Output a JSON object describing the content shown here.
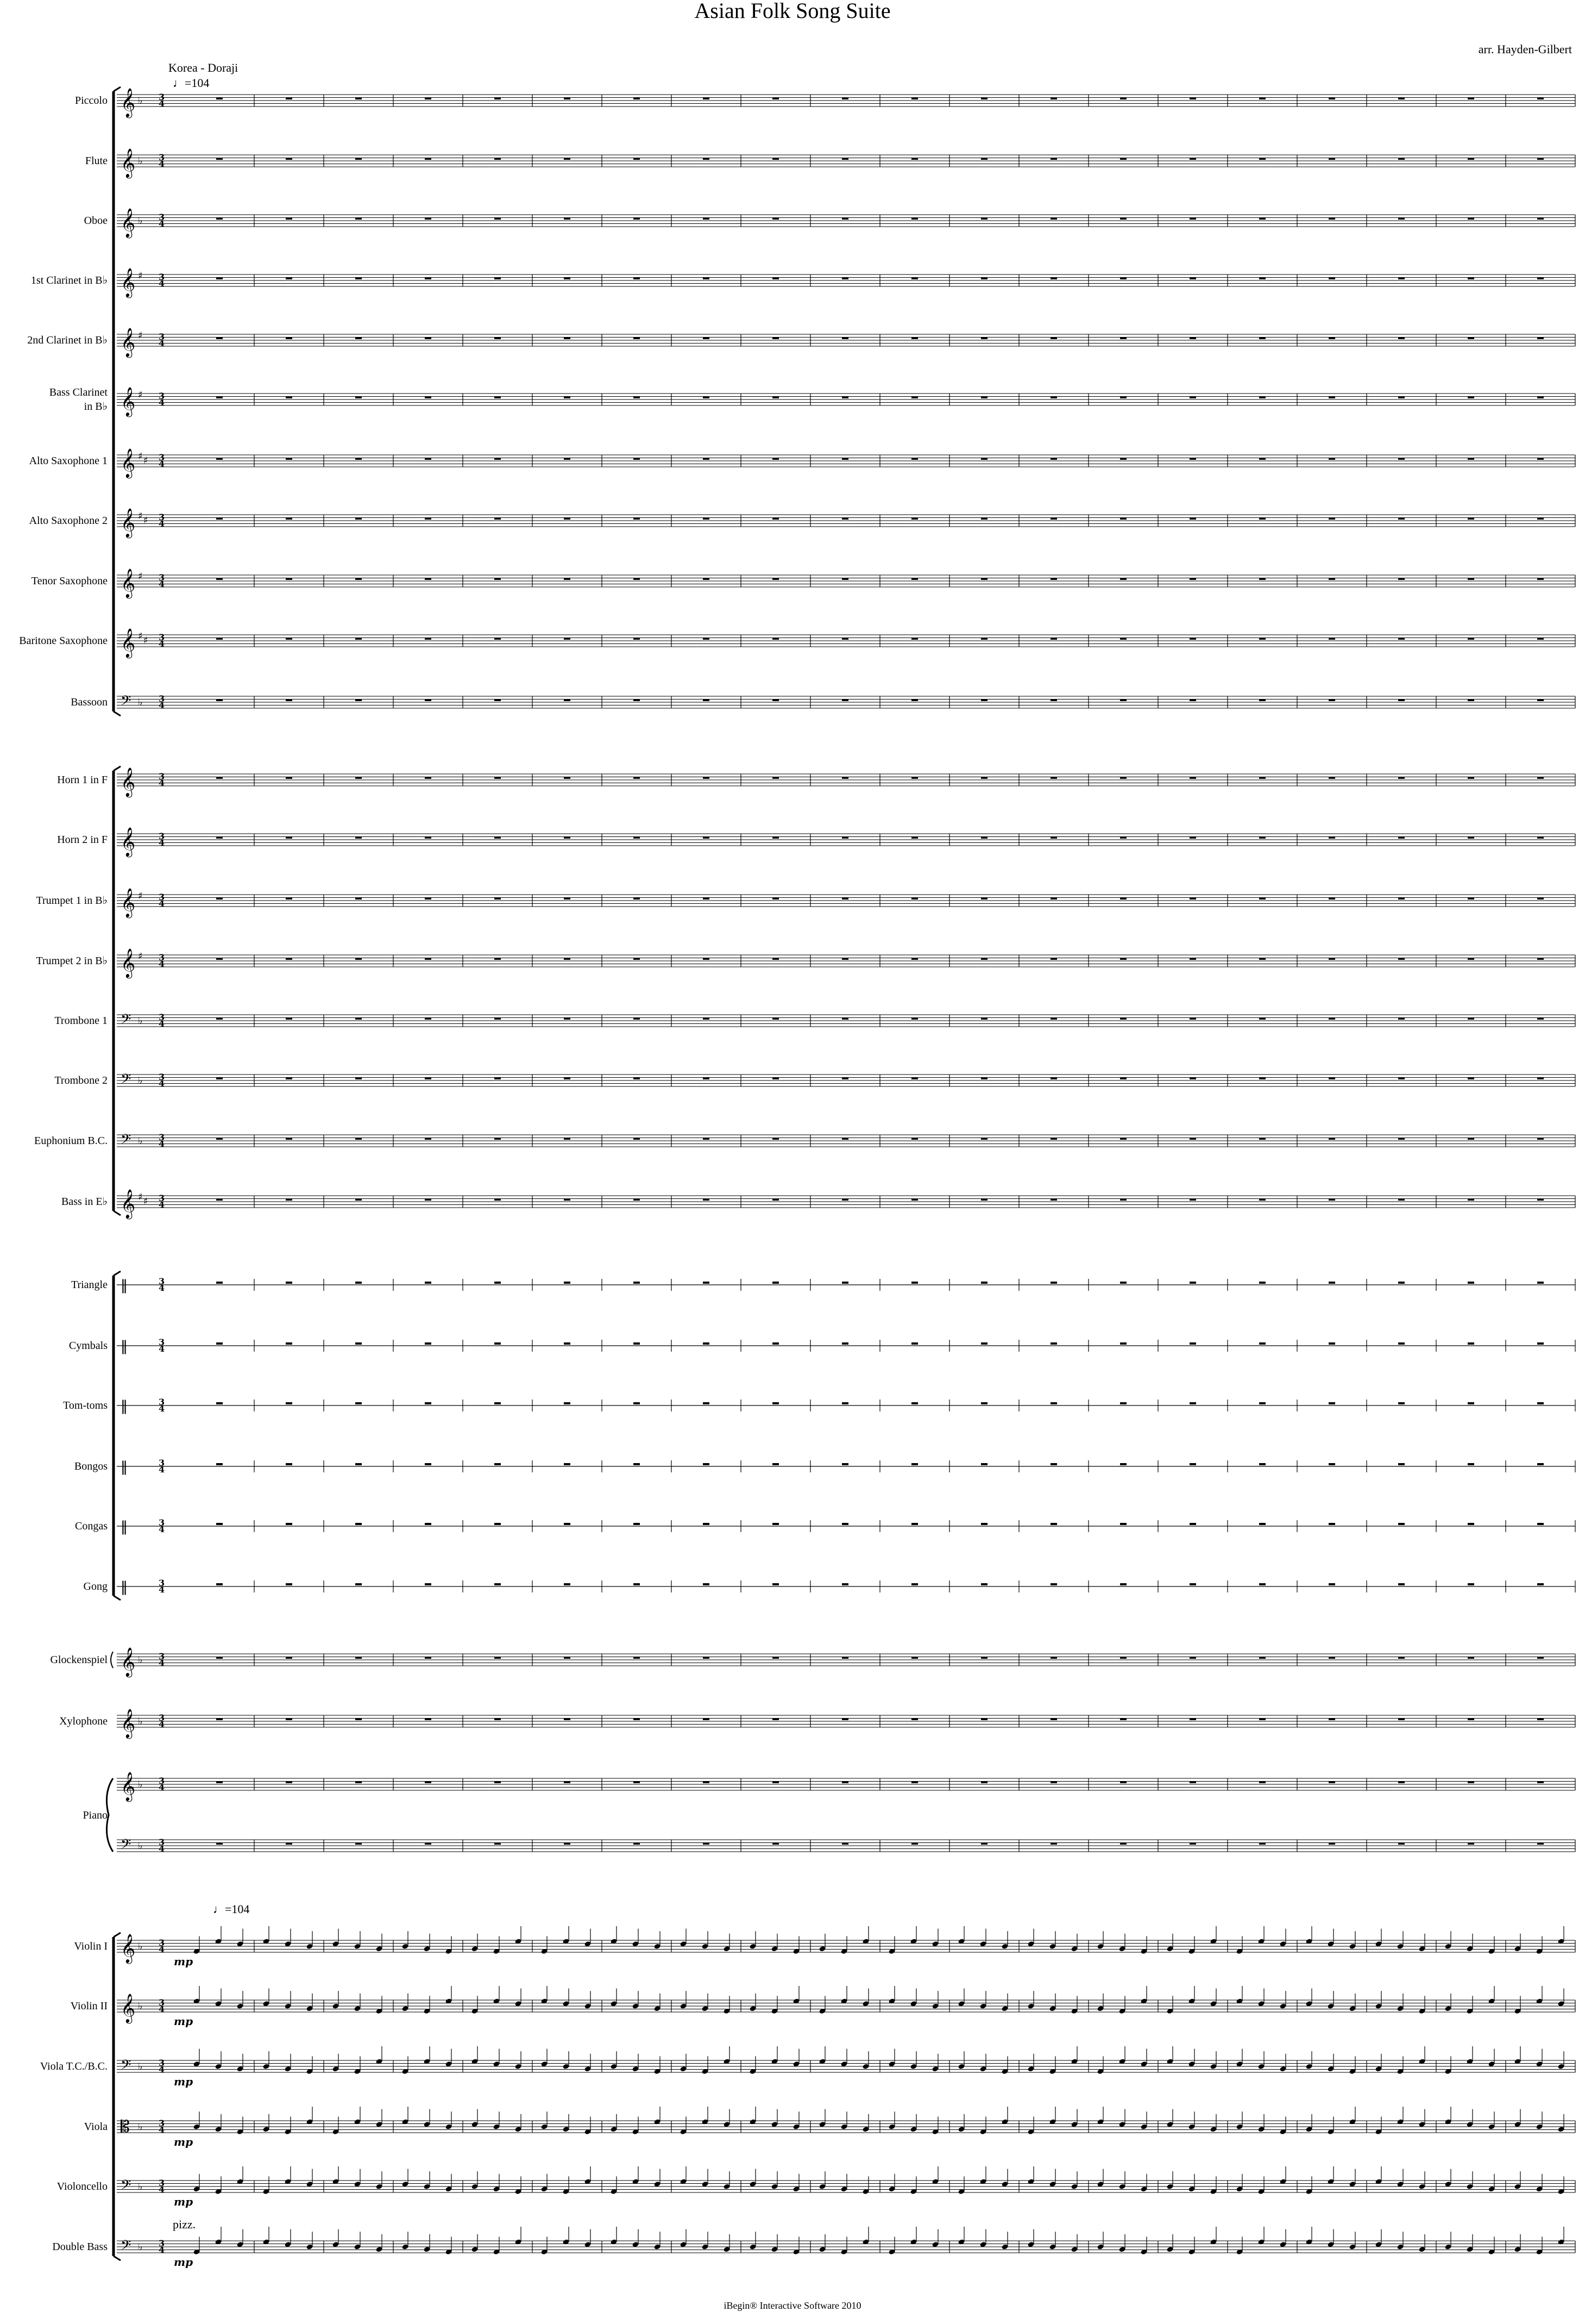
{
  "score": {
    "title": "Asian Folk Song Suite",
    "arranger": "arr.  Hayden-Gilbert",
    "section": "Korea - Doraji",
    "tempo": "=104",
    "time_signature": [
      "3",
      "4"
    ],
    "measures": 20,
    "footer": "iBegin® Interactive Software 2010",
    "pizz": "pizz.",
    "dynamic": "mp"
  },
  "instruments": [
    {
      "label": "Piccolo",
      "clef": "treble",
      "key": "flat",
      "accidentals": 1
    },
    {
      "label": "Flute",
      "clef": "treble",
      "key": "flat",
      "accidentals": 1
    },
    {
      "label": "Oboe",
      "clef": "treble",
      "key": "flat",
      "accidentals": 1
    },
    {
      "label": "1st Clarinet in B♭",
      "clef": "treble",
      "key": "sharp",
      "accidentals": 1
    },
    {
      "label": "2nd Clarinet in B♭",
      "clef": "treble",
      "key": "sharp",
      "accidentals": 1
    },
    {
      "label": "Bass Clarinet\nin B♭",
      "clef": "treble",
      "key": "sharp",
      "accidentals": 1
    },
    {
      "label": "Alto Saxophone 1",
      "clef": "treble",
      "key": "sharp",
      "accidentals": 2
    },
    {
      "label": "Alto Saxophone 2",
      "clef": "treble",
      "key": "sharp",
      "accidentals": 2
    },
    {
      "label": "Tenor Saxophone",
      "clef": "treble",
      "key": "sharp",
      "accidentals": 1
    },
    {
      "label": "Baritone Saxophone",
      "clef": "treble",
      "key": "sharp",
      "accidentals": 2
    },
    {
      "label": "Bassoon",
      "clef": "bass",
      "key": "flat",
      "accidentals": 1
    },
    {
      "label": "Horn 1 in F",
      "clef": "treble",
      "key": "none",
      "accidentals": 0
    },
    {
      "label": "Horn 2 in F",
      "clef": "treble",
      "key": "none",
      "accidentals": 0
    },
    {
      "label": "Trumpet 1 in B♭",
      "clef": "treble",
      "key": "sharp",
      "accidentals": 1
    },
    {
      "label": "Trumpet 2 in B♭",
      "clef": "treble",
      "key": "sharp",
      "accidentals": 1
    },
    {
      "label": "Trombone 1",
      "clef": "bass",
      "key": "flat",
      "accidentals": 1
    },
    {
      "label": "Trombone 2",
      "clef": "bass",
      "key": "flat",
      "accidentals": 1
    },
    {
      "label": "Euphonium B.C.",
      "clef": "bass",
      "key": "flat",
      "accidentals": 1
    },
    {
      "label": "Bass in E♭",
      "clef": "treble",
      "key": "sharp",
      "accidentals": 2
    },
    {
      "label": "Triangle",
      "clef": "perc",
      "key": "none",
      "accidentals": 0
    },
    {
      "label": "Cymbals",
      "clef": "perc",
      "key": "none",
      "accidentals": 0
    },
    {
      "label": "Tom-toms",
      "clef": "perc",
      "key": "none",
      "accidentals": 0
    },
    {
      "label": "Bongos",
      "clef": "perc",
      "key": "none",
      "accidentals": 0
    },
    {
      "label": "Congas",
      "clef": "perc",
      "key": "none",
      "accidentals": 0
    },
    {
      "label": "Gong",
      "clef": "perc",
      "key": "none",
      "accidentals": 0
    },
    {
      "label": "Glockenspiel",
      "clef": "treble",
      "key": "flat",
      "accidentals": 1
    },
    {
      "label": "Xylophone",
      "clef": "treble",
      "key": "flat",
      "accidentals": 1
    },
    {
      "label": "Piano",
      "clef": "treble",
      "key": "flat",
      "accidentals": 1
    },
    {
      "label": "",
      "clef": "bass",
      "key": "flat",
      "accidentals": 1
    },
    {
      "label": "Violin I",
      "clef": "treble",
      "key": "flat",
      "accidentals": 1
    },
    {
      "label": "Violin II",
      "clef": "treble",
      "key": "flat",
      "accidentals": 1
    },
    {
      "label": "Viola T.C./B.C.",
      "clef": "bass",
      "key": "flat",
      "accidentals": 1
    },
    {
      "label": "Viola",
      "clef": "alto",
      "key": "flat",
      "accidentals": 1
    },
    {
      "label": "Violoncello",
      "clef": "bass",
      "key": "flat",
      "accidentals": 1
    },
    {
      "label": "Double Bass",
      "clef": "bass",
      "key": "flat",
      "accidentals": 1
    }
  ]
}
